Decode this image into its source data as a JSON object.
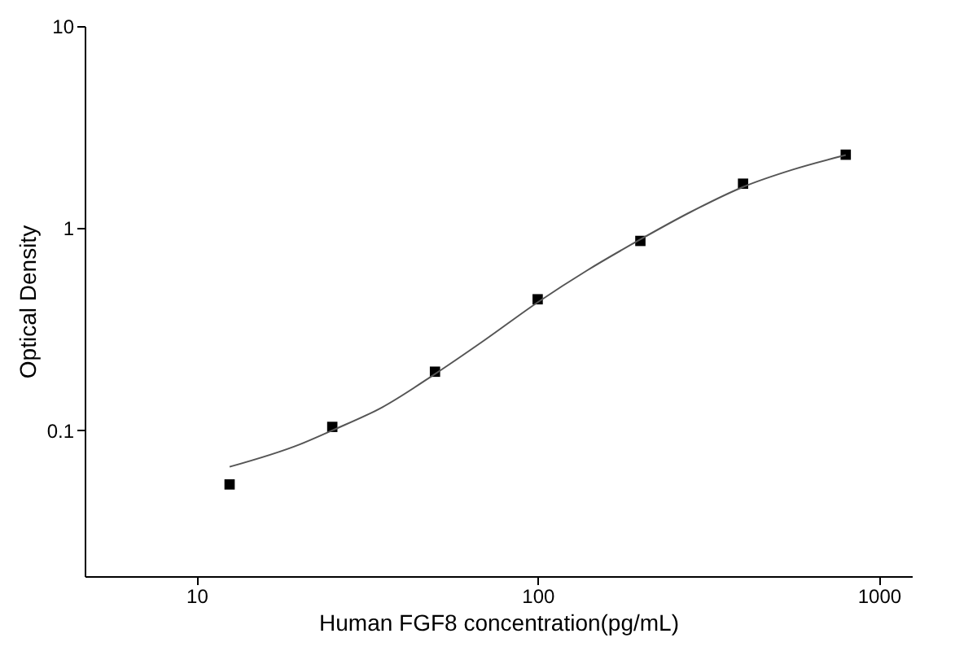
{
  "chart_data": {
    "type": "scatter",
    "xlabel": "Human FGF8 concentration(pg/mL)",
    "ylabel": "Optical Density",
    "log": "xy",
    "xlim": [
      4.7,
      1250
    ],
    "ylim": [
      0.019,
      10
    ],
    "xticks": [
      10,
      100,
      1000
    ],
    "yticks": [
      0.1,
      1,
      10
    ],
    "grid": false,
    "series": [
      {
        "color": "#000000",
        "marker": "square",
        "x": [
          12.5,
          25,
          50,
          100,
          200,
          400,
          800
        ],
        "values": [
          0.054,
          0.104,
          0.195,
          0.445,
          0.865,
          1.66,
          2.31
        ]
      },
      {
        "type": "line",
        "color": "#555555",
        "line_style": "solid",
        "marker": "none",
        "x": [
          12.5,
          20,
          25,
          35,
          50,
          70,
          100,
          140,
          200,
          280,
          400,
          560,
          800
        ],
        "values": [
          0.066,
          0.085,
          0.1,
          0.13,
          0.19,
          0.28,
          0.43,
          0.62,
          0.88,
          1.2,
          1.6,
          1.95,
          2.3
        ]
      }
    ]
  }
}
